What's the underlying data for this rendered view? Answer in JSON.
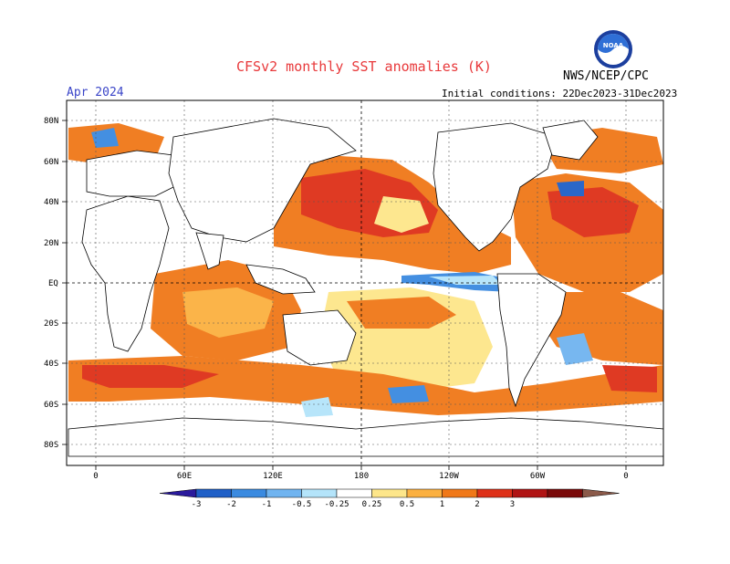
{
  "header": {
    "title": "CFSv2 monthly SST anomalies (K)",
    "agency": "NWS/NCEP/CPC",
    "month": "Apr 2024",
    "initial_conditions": "Initial conditions: 22Dec2023-31Dec2023",
    "logo_text": "NOAA"
  },
  "map": {
    "lat_labels": [
      "80N",
      "60N",
      "40N",
      "20N",
      "EQ",
      "20S",
      "40S",
      "60S",
      "80S"
    ],
    "lon_labels": [
      "0",
      "60E",
      "120E",
      "180",
      "120W",
      "60W",
      "0"
    ]
  },
  "colorbar": {
    "labels": [
      "-3",
      "-2",
      "-1",
      "-0.5",
      "-0.25",
      "0.25",
      "0.5",
      "1",
      "2",
      "3"
    ],
    "colors": [
      "#2a1a9c",
      "#1f5fc7",
      "#3a8ae0",
      "#70b4f0",
      "#b4e4fa",
      "#ffffff",
      "#fde68a",
      "#fbb040",
      "#f07818",
      "#de3018",
      "#b01414",
      "#7a0a0a",
      "#8b5a4a"
    ]
  }
}
